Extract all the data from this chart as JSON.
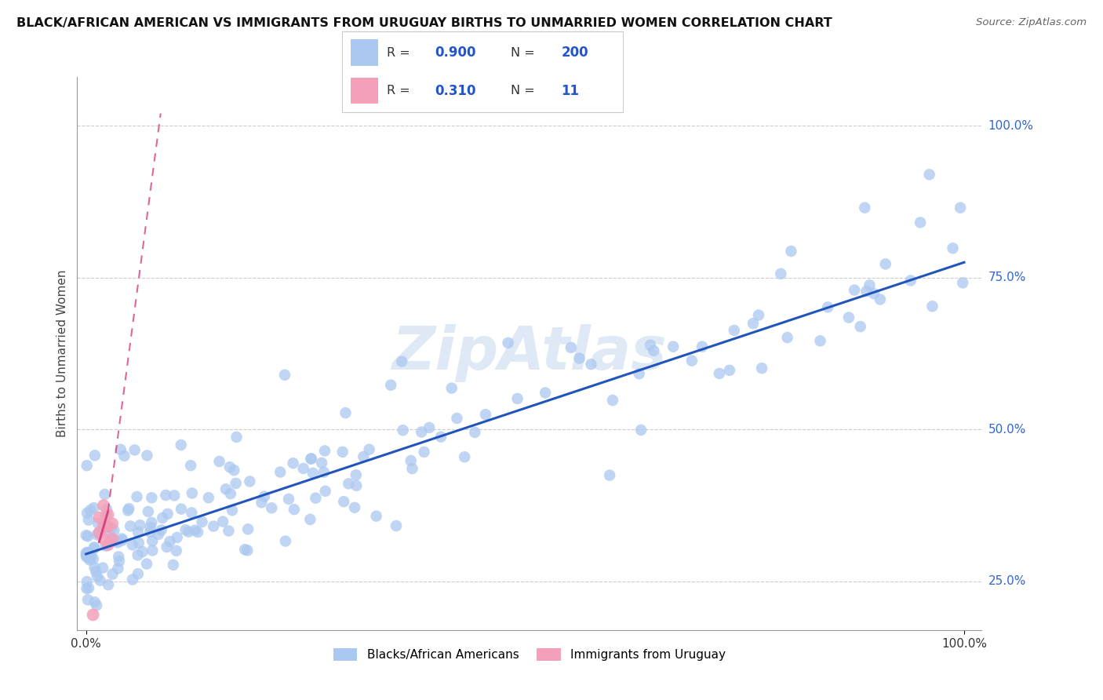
{
  "title": "BLACK/AFRICAN AMERICAN VS IMMIGRANTS FROM URUGUAY BIRTHS TO UNMARRIED WOMEN CORRELATION CHART",
  "source": "Source: ZipAtlas.com",
  "ylabel": "Births to Unmarried Women",
  "xlim": [
    -0.01,
    1.02
  ],
  "ylim": [
    0.17,
    1.08
  ],
  "x_tick_labels": [
    "0.0%",
    "100.0%"
  ],
  "x_tick_positions": [
    0.0,
    1.0
  ],
  "y_tick_labels": [
    "25.0%",
    "50.0%",
    "75.0%",
    "100.0%"
  ],
  "y_tick_positions": [
    0.25,
    0.5,
    0.75,
    1.0
  ],
  "blue_R": 0.9,
  "blue_N": 200,
  "pink_R": 0.31,
  "pink_N": 11,
  "blue_color": "#aac8f0",
  "pink_color": "#f4a0b8",
  "blue_line_color": "#2255bb",
  "pink_line_color": "#d84080",
  "watermark": "ZipAtlas",
  "background_color": "#ffffff",
  "grid_color": "#cccccc",
  "legend_R_color": "#2255cc",
  "legend_N_color": "#2255cc",
  "legend_border_color": "#cccccc",
  "right_label_color": "#3366cc",
  "bottom_legend_blue_label": "Blacks/African Americans",
  "bottom_legend_pink_label": "Immigrants from Uruguay",
  "blue_line_x0": 0.0,
  "blue_line_y0": 0.295,
  "blue_line_x1": 1.0,
  "blue_line_y1": 0.775,
  "pink_line_solid_x0": 0.025,
  "pink_line_solid_y0": 0.365,
  "pink_line_solid_x1": 0.015,
  "pink_line_solid_y1": 0.315,
  "pink_line_dashed_x0": 0.025,
  "pink_line_dashed_y0": 0.365,
  "pink_line_dashed_x1": 0.085,
  "pink_line_dashed_y1": 1.02,
  "pink_scatter_x": [
    0.015,
    0.015,
    0.02,
    0.02,
    0.02,
    0.025,
    0.025,
    0.025,
    0.03,
    0.03,
    0.008
  ],
  "pink_scatter_y": [
    0.355,
    0.33,
    0.375,
    0.34,
    0.32,
    0.36,
    0.34,
    0.31,
    0.345,
    0.32,
    0.195
  ]
}
